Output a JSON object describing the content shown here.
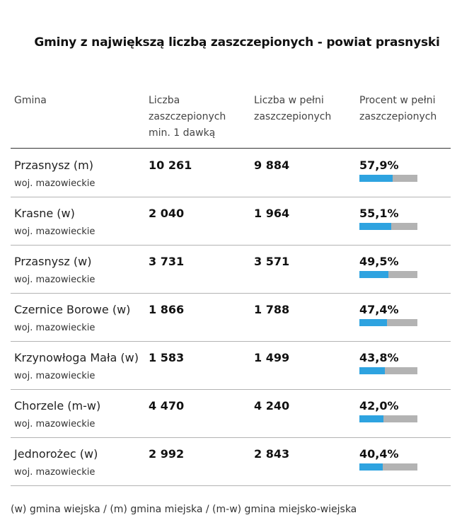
{
  "title": "Gminy z największą liczbą zaszczepionych - powiat prasnyski",
  "headers": {
    "gmina": "Gmina",
    "dose1": "Liczba zaszczepionych min. 1 dawką",
    "full": "Liczba w pełni zaszczepionych",
    "percent": "Procent w pełni zaszczepionych"
  },
  "colors": {
    "bar_fill": "#2ea3e0",
    "bar_bg": "#b3b3b3"
  },
  "chart_data": {
    "type": "table",
    "title": "Gminy z największą liczbą zaszczepionych - powiat prasnyski",
    "columns": [
      "Gmina",
      "Liczba zaszczepionych min. 1 dawką",
      "Liczba w pełni zaszczepionych",
      "Procent w pełni zaszczepionych"
    ],
    "rows": [
      {
        "name": "Przasnysz (m)",
        "region": "woj. mazowieckie",
        "dose1": "10 261",
        "full": "9 884",
        "percent_label": "57,9%",
        "percent": 57.9
      },
      {
        "name": "Krasne (w)",
        "region": "woj. mazowieckie",
        "dose1": "2 040",
        "full": "1 964",
        "percent_label": "55,1%",
        "percent": 55.1
      },
      {
        "name": "Przasnysz (w)",
        "region": "woj. mazowieckie",
        "dose1": "3 731",
        "full": "3 571",
        "percent_label": "49,5%",
        "percent": 49.5
      },
      {
        "name": "Czernice Borowe (w)",
        "region": "woj. mazowieckie",
        "dose1": "1 866",
        "full": "1 788",
        "percent_label": "47,4%",
        "percent": 47.4
      },
      {
        "name": "Krzynowłoga Mała (w)",
        "region": "woj. mazowieckie",
        "dose1": "1 583",
        "full": "1 499",
        "percent_label": "43,8%",
        "percent": 43.8
      },
      {
        "name": "Chorzele (m-w)",
        "region": "woj. mazowieckie",
        "dose1": "4 470",
        "full": "4 240",
        "percent_label": "42,0%",
        "percent": 42.0
      },
      {
        "name": "Jednorożec (w)",
        "region": "woj. mazowieckie",
        "dose1": "2 992",
        "full": "2 843",
        "percent_label": "40,4%",
        "percent": 40.4
      }
    ],
    "bar_max": 100
  },
  "footnote": "(w) gmina wiejska / (m) gmina miejska / (m-w) gmina miejsko-wiejska"
}
